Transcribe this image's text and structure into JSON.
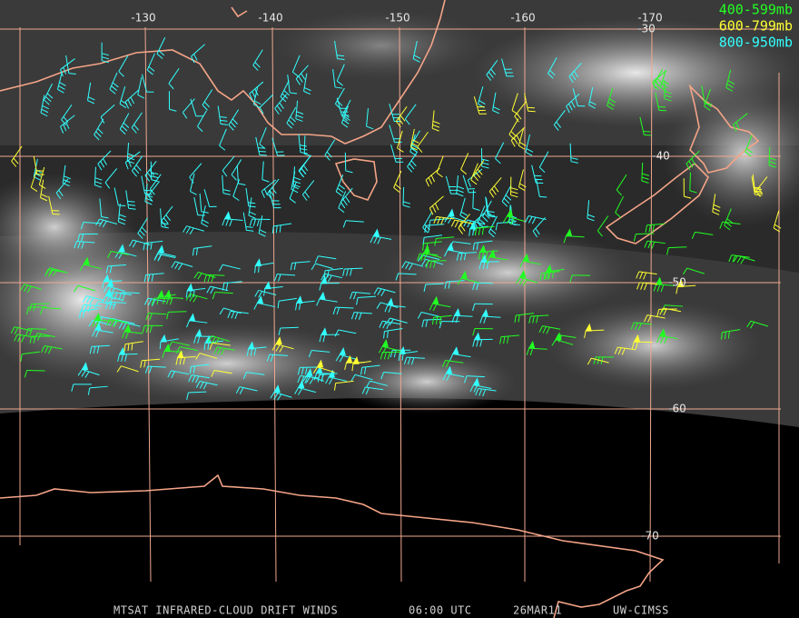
{
  "map": {
    "lon_ticks": [
      -130,
      -140,
      -150,
      -160,
      -170
    ],
    "lat_ticks": [
      -30,
      -40,
      -50,
      -60,
      -70
    ],
    "legend": [
      {
        "label": "400-599mb",
        "color": "#22ff22"
      },
      {
        "label": "600-799mb",
        "color": "#ffff33"
      },
      {
        "label": "800-950mb",
        "color": "#33ffff"
      }
    ],
    "footer": {
      "product": "MTSAT INFRARED-CLOUD DRIFT WINDS",
      "time": "06:00 UTC",
      "date": "26MAR11",
      "source": "UW-CIMSS"
    }
  }
}
